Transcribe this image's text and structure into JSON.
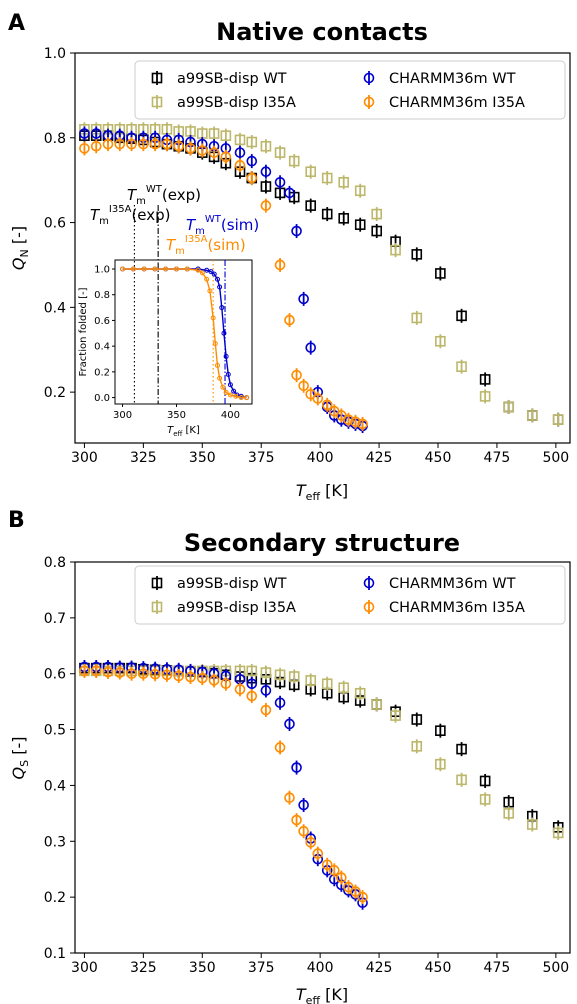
{
  "panels": [
    {
      "letter": "A",
      "title": "Native contacts",
      "ylabel_main": "Q",
      "ylabel_sub": "N",
      "ylabel_unit": " [-]",
      "xlabel_main": "T",
      "xlabel_sub": "eff",
      "xlabel_unit": " [K]",
      "xlim": [
        296,
        506
      ],
      "ylim": [
        0.08,
        1.0
      ],
      "xticks": [
        "300",
        "325",
        "350",
        "375",
        "400",
        "425",
        "450",
        "475",
        "500"
      ],
      "yticks": [
        "0.2",
        "0.4",
        "0.6",
        "0.8",
        "1.0"
      ]
    },
    {
      "letter": "B",
      "title": "Secondary structure",
      "ylabel_main": "Q",
      "ylabel_sub": "S",
      "ylabel_unit": " [-]",
      "xlabel_main": "T",
      "xlabel_sub": "eff",
      "xlabel_unit": " [K]",
      "xlim": [
        296,
        506
      ],
      "ylim": [
        0.1,
        0.8
      ],
      "xticks": [
        "300",
        "325",
        "350",
        "375",
        "400",
        "425",
        "450",
        "475",
        "500"
      ],
      "yticks": [
        "0.1",
        "0.2",
        "0.3",
        "0.4",
        "0.5",
        "0.6",
        "0.7",
        "0.8"
      ]
    }
  ],
  "legend": [
    {
      "label": "a99SB-disp WT",
      "color": "#000000",
      "marker": "square"
    },
    {
      "label": "a99SB-disp I35A",
      "color": "#bdb76b",
      "marker": "square"
    },
    {
      "label": "CHARMM36m WT",
      "color": "#0000cd",
      "marker": "circle"
    },
    {
      "label": "CHARMM36m I35A",
      "color": "#ff8c00",
      "marker": "circle"
    }
  ],
  "inset": {
    "ylabel": "Fraction folded [-]",
    "xlabel_main": "T",
    "xlabel_sub": "eff",
    "xlabel_unit": " [K]",
    "xticks": [
      "300",
      "350",
      "400"
    ],
    "yticks": [
      "0.0",
      "0.2",
      "0.4",
      "0.6",
      "0.8",
      "1.0"
    ],
    "xlim": [
      293,
      420
    ],
    "ylim": [
      -0.05,
      1.07
    ]
  },
  "annotations": {
    "tm_wt_exp": {
      "main": "T",
      "sub": "m",
      "sup": "WT",
      "suffix": "(exp)",
      "color": "#000000"
    },
    "tm_i35a_exp": {
      "main": "T",
      "sub": "m",
      "sup": "I35A",
      "suffix": "(exp)",
      "color": "#000000"
    },
    "tm_wt_sim": {
      "main": "T",
      "sub": "m",
      "sup": "WT",
      "suffix": "(sim)",
      "color": "#0000cd"
    },
    "tm_i35a_sim": {
      "main": "T",
      "sub": "m",
      "sup": "I35A",
      "suffix": "(sim)",
      "color": "#ff8c00"
    }
  },
  "chart_data": [
    {
      "type": "scatter",
      "title": "Native contacts",
      "xlabel": "T_eff [K]",
      "ylabel": "Q_N [-]",
      "xlim": [
        296,
        506
      ],
      "ylim": [
        0.08,
        1.0
      ],
      "legend_position": "top-right",
      "series": [
        {
          "name": "a99SB-disp WT",
          "color": "#000000",
          "marker": "square",
          "x": [
            300,
            305,
            310,
            315,
            320,
            325,
            330,
            335,
            340,
            345,
            350,
            355,
            360,
            366,
            371,
            377,
            383,
            389,
            396,
            403,
            410,
            417,
            424,
            432,
            441,
            451,
            460,
            470,
            480,
            490,
            501
          ],
          "y": [
            0.805,
            0.805,
            0.805,
            0.8,
            0.798,
            0.795,
            0.79,
            0.785,
            0.78,
            0.775,
            0.765,
            0.755,
            0.74,
            0.72,
            0.705,
            0.685,
            0.67,
            0.66,
            0.64,
            0.62,
            0.61,
            0.595,
            0.58,
            0.555,
            0.525,
            0.48,
            0.38,
            0.23,
            0.165,
            0.145,
            0.135
          ]
        },
        {
          "name": "a99SB-disp I35A",
          "color": "#bdb76b",
          "marker": "square",
          "x": [
            300,
            305,
            310,
            315,
            320,
            325,
            330,
            335,
            340,
            345,
            350,
            355,
            360,
            366,
            371,
            377,
            383,
            389,
            396,
            403,
            410,
            417,
            424,
            432,
            441,
            451,
            460,
            470,
            480,
            490,
            501
          ],
          "y": [
            0.82,
            0.82,
            0.82,
            0.82,
            0.82,
            0.82,
            0.82,
            0.82,
            0.815,
            0.815,
            0.81,
            0.81,
            0.805,
            0.795,
            0.79,
            0.78,
            0.765,
            0.745,
            0.72,
            0.705,
            0.695,
            0.675,
            0.62,
            0.535,
            0.375,
            0.32,
            0.26,
            0.19,
            0.165,
            0.145,
            0.135
          ]
        },
        {
          "name": "CHARMM36m WT",
          "color": "#0000cd",
          "marker": "circle",
          "x": [
            300,
            305,
            310,
            315,
            320,
            325,
            330,
            335,
            340,
            345,
            350,
            355,
            360,
            366,
            371,
            377,
            383,
            387,
            390,
            393,
            396,
            399,
            403,
            406,
            409,
            412,
            415,
            418
          ],
          "y": [
            0.81,
            0.81,
            0.805,
            0.805,
            0.8,
            0.8,
            0.8,
            0.795,
            0.795,
            0.79,
            0.785,
            0.78,
            0.775,
            0.765,
            0.745,
            0.72,
            0.695,
            0.67,
            0.58,
            0.42,
            0.305,
            0.2,
            0.165,
            0.145,
            0.135,
            0.13,
            0.125,
            0.12
          ]
        },
        {
          "name": "CHARMM36m I35A",
          "color": "#ff8c00",
          "marker": "circle",
          "x": [
            300,
            305,
            310,
            315,
            320,
            325,
            330,
            335,
            340,
            345,
            350,
            355,
            360,
            366,
            371,
            377,
            383,
            387,
            390,
            393,
            396,
            399,
            403,
            406,
            409,
            412,
            415,
            418
          ],
          "y": [
            0.775,
            0.78,
            0.785,
            0.785,
            0.785,
            0.785,
            0.785,
            0.785,
            0.78,
            0.775,
            0.77,
            0.765,
            0.755,
            0.735,
            0.705,
            0.64,
            0.5,
            0.37,
            0.24,
            0.215,
            0.195,
            0.185,
            0.17,
            0.155,
            0.145,
            0.135,
            0.13,
            0.125
          ]
        }
      ]
    },
    {
      "type": "scatter",
      "title": "Secondary structure",
      "xlabel": "T_eff [K]",
      "ylabel": "Q_S [-]",
      "xlim": [
        296,
        506
      ],
      "ylim": [
        0.1,
        0.8
      ],
      "legend_position": "top-right",
      "series": [
        {
          "name": "a99SB-disp WT",
          "color": "#000000",
          "marker": "square",
          "x": [
            300,
            305,
            310,
            315,
            320,
            325,
            330,
            335,
            340,
            345,
            350,
            355,
            360,
            366,
            371,
            377,
            383,
            389,
            396,
            403,
            410,
            417,
            424,
            432,
            441,
            451,
            460,
            470,
            480,
            490,
            501
          ],
          "y": [
            0.61,
            0.61,
            0.61,
            0.61,
            0.61,
            0.608,
            0.607,
            0.606,
            0.605,
            0.604,
            0.603,
            0.601,
            0.598,
            0.595,
            0.592,
            0.59,
            0.585,
            0.58,
            0.572,
            0.565,
            0.558,
            0.552,
            0.545,
            0.532,
            0.518,
            0.498,
            0.465,
            0.408,
            0.37,
            0.345,
            0.325
          ]
        },
        {
          "name": "a99SB-disp I35A",
          "color": "#bdb76b",
          "marker": "square",
          "x": [
            300,
            305,
            310,
            315,
            320,
            325,
            330,
            335,
            340,
            345,
            350,
            355,
            360,
            366,
            371,
            377,
            383,
            389,
            396,
            403,
            410,
            417,
            424,
            432,
            441,
            451,
            460,
            470,
            480,
            490,
            501
          ],
          "y": [
            0.605,
            0.605,
            0.605,
            0.605,
            0.605,
            0.605,
            0.605,
            0.605,
            0.605,
            0.605,
            0.605,
            0.605,
            0.605,
            0.605,
            0.605,
            0.602,
            0.598,
            0.595,
            0.588,
            0.582,
            0.575,
            0.565,
            0.545,
            0.525,
            0.47,
            0.438,
            0.41,
            0.375,
            0.35,
            0.33,
            0.315
          ]
        },
        {
          "name": "CHARMM36m WT",
          "color": "#0000cd",
          "marker": "circle",
          "x": [
            300,
            305,
            310,
            315,
            320,
            325,
            330,
            335,
            340,
            345,
            350,
            355,
            360,
            366,
            371,
            377,
            383,
            387,
            390,
            393,
            396,
            399,
            403,
            406,
            409,
            412,
            415,
            418
          ],
          "y": [
            0.612,
            0.612,
            0.612,
            0.611,
            0.611,
            0.61,
            0.609,
            0.608,
            0.607,
            0.605,
            0.603,
            0.6,
            0.596,
            0.59,
            0.582,
            0.57,
            0.548,
            0.51,
            0.432,
            0.365,
            0.305,
            0.268,
            0.248,
            0.232,
            0.222,
            0.212,
            0.205,
            0.19
          ]
        },
        {
          "name": "CHARMM36m I35A",
          "color": "#ff8c00",
          "marker": "circle",
          "x": [
            300,
            305,
            310,
            315,
            320,
            325,
            330,
            335,
            340,
            345,
            350,
            355,
            360,
            366,
            371,
            377,
            383,
            387,
            390,
            393,
            396,
            399,
            403,
            406,
            409,
            412,
            415,
            418
          ],
          "y": [
            0.605,
            0.605,
            0.603,
            0.602,
            0.6,
            0.6,
            0.599,
            0.598,
            0.596,
            0.594,
            0.592,
            0.588,
            0.582,
            0.572,
            0.56,
            0.535,
            0.468,
            0.378,
            0.338,
            0.318,
            0.298,
            0.278,
            0.258,
            0.248,
            0.235,
            0.218,
            0.21,
            0.2
          ]
        }
      ]
    },
    {
      "type": "line",
      "title": "",
      "xlabel": "T_eff [K]",
      "ylabel": "Fraction folded [-]",
      "xlim": [
        293,
        420
      ],
      "ylim": [
        -0.05,
        1.07
      ],
      "series": [
        {
          "name": "",
          "color": "#0000cd",
          "x": [
            300,
            310,
            320,
            330,
            340,
            350,
            360,
            370,
            378,
            382,
            385,
            388,
            390,
            392,
            394,
            396,
            398,
            400,
            403,
            406,
            410,
            415
          ],
          "y": [
            1.0,
            1.0,
            1.0,
            1.0,
            1.0,
            1.0,
            1.0,
            1.0,
            0.99,
            0.98,
            0.96,
            0.92,
            0.86,
            0.7,
            0.5,
            0.32,
            0.18,
            0.1,
            0.05,
            0.02,
            0.01,
            0.0
          ]
        },
        {
          "name": "",
          "color": "#ff8c00",
          "x": [
            300,
            310,
            320,
            330,
            340,
            350,
            360,
            370,
            374,
            378,
            381,
            384,
            386,
            388,
            390,
            393,
            396,
            400,
            405,
            410,
            415
          ],
          "y": [
            1.0,
            1.0,
            1.0,
            1.0,
            1.0,
            1.0,
            1.0,
            0.99,
            0.97,
            0.92,
            0.83,
            0.62,
            0.42,
            0.25,
            0.15,
            0.08,
            0.04,
            0.02,
            0.01,
            0.0,
            0.0
          ]
        }
      ],
      "vlines": [
        {
          "x": 311,
          "style": "dotted",
          "color": "#000000"
        },
        {
          "x": 333,
          "style": "dashdot",
          "color": "#000000"
        },
        {
          "x": 384,
          "style": "dotted",
          "color": "#ff8c00"
        },
        {
          "x": 395,
          "style": "dashdot",
          "color": "#0000cd"
        }
      ]
    }
  ]
}
